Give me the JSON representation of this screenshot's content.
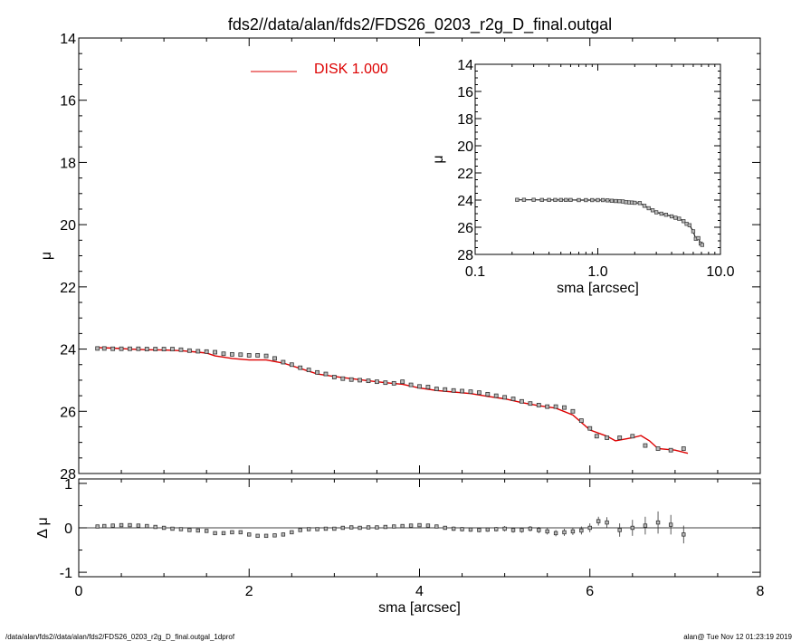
{
  "title": "fds2//data/alan/fds2/FDS26_0203_r2g_D_final.outgal",
  "footer": {
    "left": "/data/alan/fds2//data/alan/fds2/FDS26_0203_r2g_D_final.outgal_1dprof",
    "right": "alan@  Tue Nov 12 01:23:19 2019"
  },
  "chart_data": [
    {
      "type": "scatter",
      "panel": "main",
      "xlim": [
        0,
        8
      ],
      "ylim": [
        28,
        14
      ],
      "xlabel": "",
      "ylabel": "μ",
      "x_ticks": [
        "0",
        "2",
        "4",
        "6",
        "8"
      ],
      "y_ticks": [
        "14",
        "16",
        "18",
        "20",
        "22",
        "24",
        "26",
        "28"
      ],
      "legend": {
        "label": "DISK  1.000",
        "color": "#dd0000",
        "placement": "top-center"
      },
      "series": [
        {
          "kind": "points",
          "x": [
            0.22,
            0.3,
            0.4,
            0.5,
            0.6,
            0.7,
            0.8,
            0.9,
            1.0,
            1.1,
            1.2,
            1.3,
            1.4,
            1.5,
            1.6,
            1.7,
            1.8,
            1.9,
            2.0,
            2.1,
            2.2,
            2.3,
            2.4,
            2.5,
            2.6,
            2.7,
            2.8,
            2.9,
            3.0,
            3.1,
            3.2,
            3.3,
            3.4,
            3.5,
            3.6,
            3.7,
            3.8,
            3.9,
            4.0,
            4.1,
            4.2,
            4.3,
            4.4,
            4.5,
            4.6,
            4.7,
            4.8,
            4.9,
            5.0,
            5.1,
            5.2,
            5.3,
            5.4,
            5.5,
            5.6,
            5.7,
            5.8,
            5.9,
            6.0,
            6.08,
            6.2,
            6.35,
            6.5,
            6.65,
            6.8,
            6.95,
            7.1
          ],
          "y": [
            23.98,
            23.98,
            23.99,
            23.99,
            23.99,
            23.99,
            24.0,
            24.0,
            24.0,
            24.0,
            24.02,
            24.05,
            24.07,
            24.08,
            24.1,
            24.15,
            24.17,
            24.18,
            24.2,
            24.2,
            24.22,
            24.3,
            24.42,
            24.5,
            24.6,
            24.67,
            24.75,
            24.8,
            24.9,
            24.95,
            24.98,
            25.0,
            25.02,
            25.05,
            25.08,
            25.1,
            25.05,
            25.15,
            25.2,
            25.22,
            25.28,
            25.3,
            25.33,
            25.35,
            25.37,
            25.4,
            25.45,
            25.5,
            25.55,
            25.6,
            25.68,
            25.75,
            25.8,
            25.85,
            25.85,
            25.88,
            26.0,
            26.3,
            26.55,
            26.8,
            26.85,
            26.85,
            26.8,
            27.1,
            27.2,
            27.25,
            27.2
          ]
        },
        {
          "kind": "model",
          "name": "DISK  1.000",
          "color": "#dd0000",
          "x": [
            0.22,
            0.4,
            0.6,
            0.8,
            1.0,
            1.2,
            1.4,
            1.5,
            1.6,
            1.8,
            2.0,
            2.2,
            2.4,
            2.6,
            2.8,
            3.0,
            3.2,
            3.4,
            3.6,
            3.8,
            4.0,
            4.2,
            4.4,
            4.6,
            4.8,
            5.0,
            5.2,
            5.4,
            5.6,
            5.8,
            6.0,
            6.2,
            6.3,
            6.5,
            6.6,
            6.7,
            6.8,
            7.0,
            7.15
          ],
          "y": [
            23.95,
            23.97,
            24.0,
            24.02,
            24.03,
            24.05,
            24.1,
            24.13,
            24.22,
            24.3,
            24.35,
            24.35,
            24.45,
            24.62,
            24.8,
            24.88,
            24.95,
            25.02,
            25.08,
            25.13,
            25.25,
            25.33,
            25.38,
            25.43,
            25.52,
            25.6,
            25.72,
            25.82,
            25.9,
            26.12,
            26.6,
            26.8,
            26.95,
            26.85,
            26.78,
            26.95,
            27.2,
            27.25,
            27.35
          ]
        }
      ]
    },
    {
      "type": "scatter",
      "panel": "residual",
      "xlim": [
        0,
        8
      ],
      "ylim": [
        -1.1,
        1.1
      ],
      "xlabel": "sma [arcsec]",
      "ylabel": "Δ μ",
      "x_ticks": [
        "0",
        "2",
        "4",
        "6",
        "8"
      ],
      "y_ticks": [
        "1",
        "0",
        "-1"
      ],
      "zero_line": true,
      "series": [
        {
          "kind": "residuals",
          "x": [
            0.22,
            0.3,
            0.4,
            0.5,
            0.6,
            0.7,
            0.8,
            0.9,
            1.0,
            1.1,
            1.2,
            1.3,
            1.4,
            1.5,
            1.6,
            1.7,
            1.8,
            1.9,
            2.0,
            2.1,
            2.2,
            2.3,
            2.4,
            2.5,
            2.6,
            2.7,
            2.8,
            2.9,
            3.0,
            3.1,
            3.2,
            3.3,
            3.4,
            3.5,
            3.6,
            3.7,
            3.8,
            3.9,
            4.0,
            4.1,
            4.2,
            4.3,
            4.4,
            4.5,
            4.6,
            4.7,
            4.8,
            4.9,
            5.0,
            5.1,
            5.2,
            5.3,
            5.4,
            5.5,
            5.6,
            5.7,
            5.8,
            5.9,
            6.0,
            6.1,
            6.2,
            6.35,
            6.5,
            6.65,
            6.8,
            6.95,
            7.1
          ],
          "y": [
            0.03,
            0.04,
            0.05,
            0.06,
            0.06,
            0.05,
            0.04,
            0.02,
            0.0,
            -0.02,
            -0.03,
            -0.05,
            -0.06,
            -0.07,
            -0.12,
            -0.12,
            -0.1,
            -0.1,
            -0.15,
            -0.18,
            -0.18,
            -0.17,
            -0.15,
            -0.1,
            -0.05,
            -0.03,
            -0.03,
            -0.02,
            -0.02,
            0.0,
            0.01,
            0.0,
            0.01,
            0.01,
            0.02,
            0.03,
            0.04,
            0.05,
            0.06,
            0.05,
            0.03,
            0.0,
            -0.02,
            -0.03,
            -0.04,
            -0.05,
            -0.04,
            -0.03,
            -0.02,
            -0.05,
            -0.05,
            -0.02,
            -0.05,
            -0.08,
            -0.12,
            -0.1,
            -0.08,
            -0.06,
            0.0,
            0.15,
            0.12,
            -0.05,
            0.0,
            0.05,
            0.12,
            0.07,
            -0.15
          ],
          "err": [
            0.01,
            0.01,
            0.01,
            0.01,
            0.01,
            0.01,
            0.01,
            0.01,
            0.01,
            0.01,
            0.01,
            0.01,
            0.01,
            0.02,
            0.02,
            0.02,
            0.02,
            0.02,
            0.02,
            0.02,
            0.02,
            0.02,
            0.02,
            0.02,
            0.02,
            0.02,
            0.02,
            0.02,
            0.03,
            0.03,
            0.03,
            0.03,
            0.03,
            0.03,
            0.03,
            0.03,
            0.04,
            0.04,
            0.04,
            0.04,
            0.04,
            0.04,
            0.05,
            0.05,
            0.05,
            0.05,
            0.05,
            0.05,
            0.06,
            0.06,
            0.06,
            0.06,
            0.07,
            0.07,
            0.07,
            0.08,
            0.08,
            0.09,
            0.1,
            0.1,
            0.12,
            0.15,
            0.18,
            0.2,
            0.25,
            0.22,
            0.2
          ]
        }
      ]
    },
    {
      "type": "scatter",
      "panel": "inset",
      "x_scale": "log",
      "xlim": [
        0.1,
        10
      ],
      "ylim": [
        28,
        14
      ],
      "xlabel": "sma [arcsec]",
      "ylabel": "μ",
      "x_ticks": [
        "0.1",
        "1.0",
        "10.0"
      ],
      "y_ticks": [
        "14",
        "16",
        "18",
        "20",
        "22",
        "24",
        "26",
        "28"
      ],
      "series": [
        {
          "kind": "points",
          "x": [
            0.22,
            0.25,
            0.3,
            0.35,
            0.4,
            0.45,
            0.5,
            0.55,
            0.6,
            0.7,
            0.8,
            0.9,
            1.0,
            1.1,
            1.2,
            1.3,
            1.4,
            1.5,
            1.6,
            1.7,
            1.8,
            1.9,
            2.0,
            2.2,
            2.4,
            2.6,
            2.8,
            3.0,
            3.3,
            3.6,
            4.0,
            4.3,
            4.6,
            5.0,
            5.3,
            5.6,
            6.0,
            6.3,
            6.6,
            6.9,
            7.1
          ],
          "y": [
            23.98,
            23.98,
            23.98,
            23.99,
            23.99,
            23.99,
            23.99,
            23.99,
            23.99,
            24.0,
            24.0,
            24.0,
            24.0,
            24.0,
            24.02,
            24.05,
            24.07,
            24.08,
            24.1,
            24.15,
            24.17,
            24.18,
            24.2,
            24.22,
            24.42,
            24.6,
            24.75,
            24.9,
            25.0,
            25.08,
            25.2,
            25.3,
            25.37,
            25.55,
            25.75,
            25.85,
            26.3,
            26.85,
            26.8,
            27.2,
            27.3
          ]
        }
      ]
    }
  ]
}
